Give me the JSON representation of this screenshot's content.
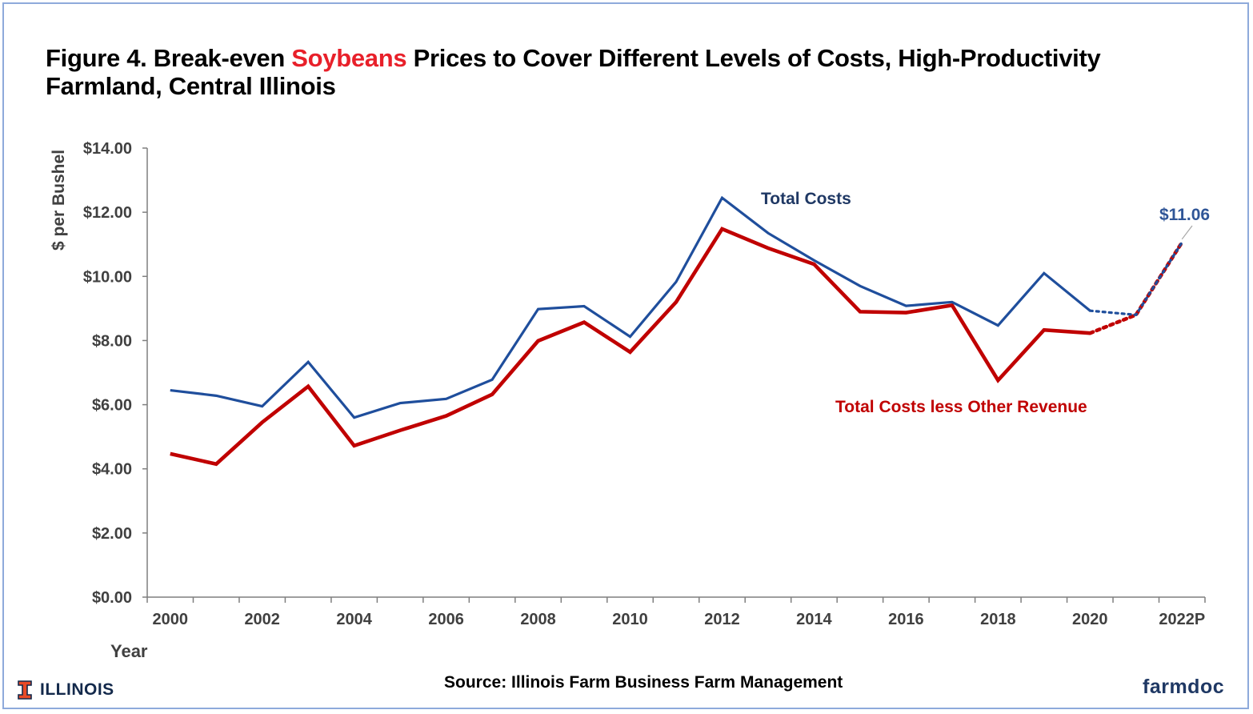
{
  "title": {
    "prefix": "Figure 4. Break-even ",
    "highlight": "Soybeans",
    "suffix": " Prices to Cover Different Levels of Costs, High-Productivity Farmland, Central Illinois"
  },
  "source": "Source:  Illinois Farm Business Farm Management",
  "logos": {
    "illinois": "ILLINOIS",
    "farmdoc": "farmdoc"
  },
  "colors": {
    "total_costs": "#1f4e9c",
    "less_other_revenue": "#c00000",
    "highlight": "#e8202a",
    "frame": "#8eaadb"
  },
  "chart_data": {
    "type": "line",
    "title": "Figure 4. Break-even Soybeans Prices to Cover Different Levels of Costs, High-Productivity Farmland, Central Illinois",
    "xlabel": "Year",
    "ylabel": "$ per Bushel",
    "ylim": [
      0,
      14
    ],
    "yticks": [
      "$0.00",
      "$2.00",
      "$4.00",
      "$6.00",
      "$8.00",
      "$10.00",
      "$12.00",
      "$14.00"
    ],
    "x": [
      "2000",
      "2001",
      "2002",
      "2003",
      "2004",
      "2005",
      "2006",
      "2007",
      "2008",
      "2009",
      "2010",
      "2011",
      "2012",
      "2013",
      "2014",
      "2015",
      "2016",
      "2017",
      "2018",
      "2019",
      "2020",
      "2021",
      "2022P"
    ],
    "xtick_labels": [
      "2000",
      "2002",
      "2004",
      "2006",
      "2008",
      "2010",
      "2012",
      "2014",
      "2016",
      "2018",
      "2020",
      "2022P"
    ],
    "grid": false,
    "projected_from_index": 20,
    "series": [
      {
        "name": "Total Costs",
        "color": "#1f4e9c",
        "values": [
          6.45,
          6.28,
          5.95,
          7.33,
          5.6,
          6.05,
          6.18,
          6.78,
          8.98,
          9.07,
          8.12,
          9.83,
          12.45,
          11.35,
          10.5,
          9.7,
          9.08,
          9.2,
          8.47,
          10.1,
          8.93,
          8.8,
          11.06
        ]
      },
      {
        "name": "Total Costs less Other Revenue",
        "color": "#c00000",
        "values": [
          4.47,
          4.15,
          5.45,
          6.57,
          4.72,
          5.2,
          5.65,
          6.32,
          7.99,
          8.57,
          7.64,
          9.2,
          11.48,
          10.88,
          10.38,
          8.9,
          8.87,
          9.1,
          6.76,
          8.33,
          8.23,
          8.8,
          11.06
        ]
      }
    ],
    "annotations": [
      {
        "text": "$11.06",
        "series": "Total Costs",
        "at_x": "2022P"
      }
    ]
  }
}
